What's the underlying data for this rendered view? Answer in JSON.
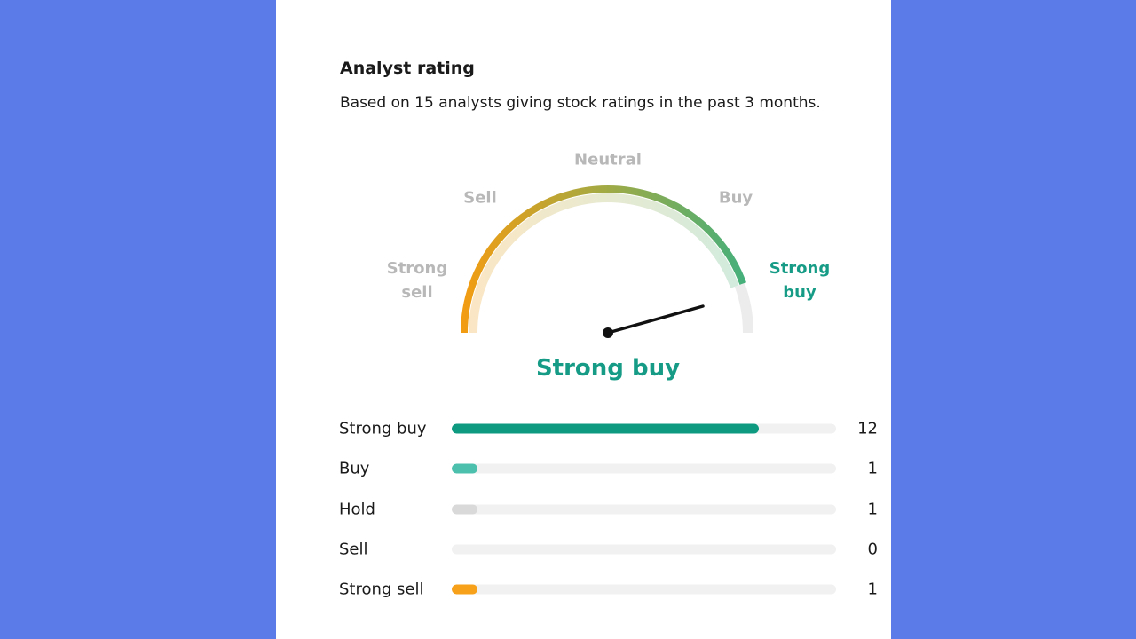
{
  "widget": {
    "title": "Analyst rating",
    "subtitle": "Based on 15 analysts giving stock ratings in the past 3 months.",
    "gauge_labels": {
      "strong_sell": "Strong sell",
      "sell": "Sell",
      "neutral": "Neutral",
      "buy": "Buy",
      "strong_buy": "Strong buy"
    },
    "verdict": "Strong buy",
    "ratings": [
      {
        "label": "Strong buy",
        "value": 12,
        "color": "#0e9981"
      },
      {
        "label": "Buy",
        "value": 1,
        "color": "#4cc0ad"
      },
      {
        "label": "Hold",
        "value": 1,
        "color": "#d9d9d9"
      },
      {
        "label": "Sell",
        "value": 0,
        "color": "#e0e0e0"
      },
      {
        "label": "Strong sell",
        "value": 1,
        "color": "#f7a11a"
      }
    ]
  }
}
